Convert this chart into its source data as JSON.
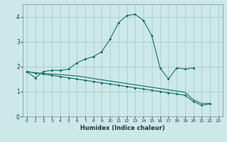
{
  "xlabel": "Humidex (Indice chaleur)",
  "bg_color": "#cce8e8",
  "line_color": "#1a6b6b",
  "grid_color": "#a0c8c8",
  "xlim": [
    -0.5,
    23.5
  ],
  "ylim": [
    0,
    4.5
  ],
  "xticks": [
    0,
    1,
    2,
    3,
    4,
    5,
    6,
    7,
    8,
    9,
    10,
    11,
    12,
    13,
    14,
    15,
    16,
    17,
    18,
    19,
    20,
    21,
    22,
    23
  ],
  "yticks": [
    0,
    1,
    2,
    3,
    4
  ],
  "line1_y": [
    1.8,
    1.55,
    1.8,
    1.85,
    1.85,
    1.9,
    2.15,
    2.3,
    2.4,
    2.6,
    3.1,
    3.75,
    4.05,
    4.1,
    3.85,
    3.25,
    1.95,
    1.5,
    1.95,
    1.9,
    1.95,
    null,
    null,
    null
  ],
  "line2_y": [
    1.8,
    1.75,
    1.7,
    1.65,
    1.6,
    1.55,
    1.5,
    1.45,
    1.4,
    1.35,
    1.3,
    1.25,
    1.2,
    1.15,
    1.1,
    1.05,
    1.0,
    0.95,
    0.9,
    0.85,
    0.6,
    0.45,
    0.5,
    null
  ],
  "line3_y": [
    1.8,
    1.75,
    1.72,
    1.7,
    1.68,
    1.65,
    1.62,
    1.58,
    1.52,
    1.47,
    1.42,
    1.37,
    1.32,
    1.27,
    1.22,
    1.17,
    1.12,
    1.07,
    1.02,
    0.97,
    0.67,
    0.52,
    0.52,
    null
  ]
}
